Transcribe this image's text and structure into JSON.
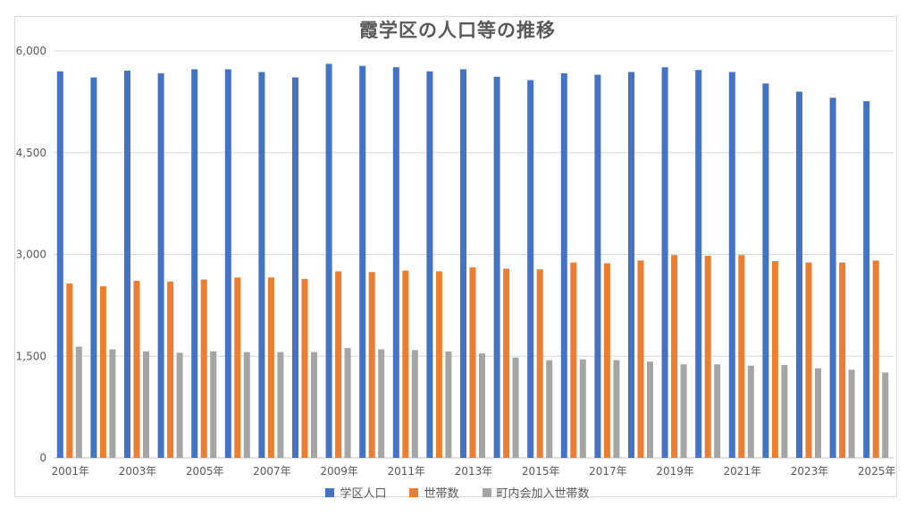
{
  "chart_data": {
    "type": "bar",
    "title": "霞学区の人口等の推移",
    "xlabel": "",
    "ylabel": "",
    "ylim": [
      0,
      6000
    ],
    "yticks": [
      "0",
      "1,500",
      "3,000",
      "4,500",
      "6,000"
    ],
    "ytick_values": [
      0,
      1500,
      3000,
      4500,
      6000
    ],
    "grid": true,
    "legend_position": "bottom",
    "categories": [
      "2001年",
      "2002年",
      "2003年",
      "2004年",
      "2005年",
      "2006年",
      "2007年",
      "2008年",
      "2009年",
      "2010年",
      "2011年",
      "2012年",
      "2013年",
      "2014年",
      "2015年",
      "2016年",
      "2017年",
      "2018年",
      "2019年",
      "2020年",
      "2021年",
      "2022年",
      "2023年",
      "2024年",
      "2025年"
    ],
    "xtick_labels": [
      "2001年",
      "",
      "2003年",
      "",
      "2005年",
      "",
      "2007年",
      "",
      "2009年",
      "",
      "2011年",
      "",
      "2013年",
      "",
      "2015年",
      "",
      "2017年",
      "",
      "2019年",
      "",
      "2021年",
      "",
      "2023年",
      "",
      "2025年"
    ],
    "series": [
      {
        "name": "学区人口",
        "color": "#4472c4",
        "values": [
          5700,
          5610,
          5710,
          5670,
          5730,
          5730,
          5690,
          5610,
          5810,
          5780,
          5760,
          5700,
          5730,
          5620,
          5570,
          5670,
          5650,
          5690,
          5760,
          5720,
          5690,
          5520,
          5400,
          5310,
          5260
        ]
      },
      {
        "name": "世帯数",
        "color": "#ed7d31",
        "values": [
          2570,
          2530,
          2610,
          2600,
          2630,
          2660,
          2660,
          2640,
          2750,
          2740,
          2760,
          2750,
          2810,
          2790,
          2780,
          2880,
          2870,
          2910,
          2990,
          2980,
          2990,
          2900,
          2880,
          2880,
          2910
        ]
      },
      {
        "name": "町内会加入世帯数",
        "color": "#a5a5a5",
        "values": [
          1640,
          1600,
          1570,
          1550,
          1570,
          1560,
          1560,
          1560,
          1620,
          1600,
          1590,
          1570,
          1540,
          1480,
          1440,
          1450,
          1440,
          1420,
          1380,
          1380,
          1360,
          1370,
          1320,
          1300,
          1260
        ]
      }
    ]
  }
}
